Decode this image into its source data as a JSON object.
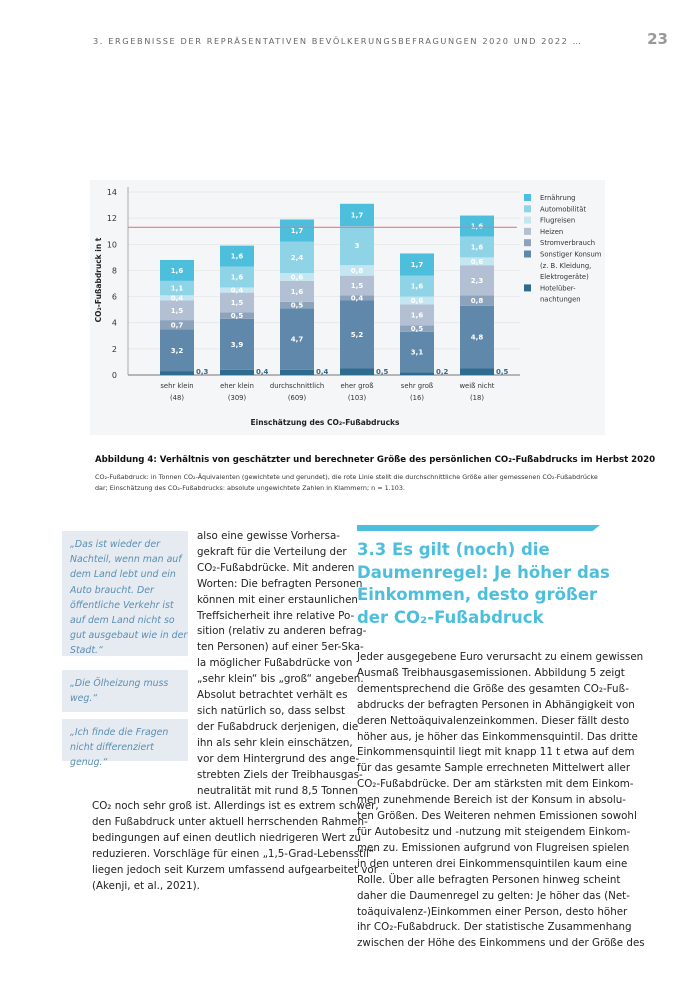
{
  "header": {
    "running_title": "3. ERGEBNISSE DER REPRÄSENTATIVEN BEVÖLKERUNGSBEFRAGUNGEN 2020 UND 2022 …",
    "page_number": "23"
  },
  "chart_data": {
    "type": "bar",
    "stacked": true,
    "ylabel": "CO₂-Fußabdruck in t",
    "xlabel": "Einschätzung des CO₂-Fußabdrucks",
    "ylim": [
      0,
      14
    ],
    "yticks": [
      "0",
      "2",
      "4",
      "6",
      "8",
      "10",
      "12",
      "14"
    ],
    "grid": true,
    "legend_position": "right",
    "categories": [
      [
        "sehr klein",
        "(48)"
      ],
      [
        "eher klein",
        "(309)"
      ],
      [
        "durchschnittlich",
        "(609)"
      ],
      [
        "eher groß",
        "(103)"
      ],
      [
        "sehr groß",
        "(16)"
      ],
      [
        "weiß nicht",
        "(18)"
      ]
    ],
    "reference_line": {
      "value": 11.3,
      "color": "#e07a8e"
    },
    "series": [
      {
        "name": "Hotelübernachtungen",
        "legend_lines": [
          "Hotelüber-",
          "nachtungen"
        ],
        "color": "#2d6b8f",
        "values": [
          0.3,
          0.4,
          0.4,
          0.5,
          0.2,
          0.5
        ]
      },
      {
        "name": "Sonstiger Konsum (z. B. Kleidung, Elektrogeräte)",
        "legend_lines": [
          "Sonstiger Konsum",
          "(z. B. Kleidung,",
          "Elektrogeräte)"
        ],
        "color": "#5f88aa",
        "values": [
          3.2,
          3.9,
          4.7,
          5.2,
          3.1,
          4.8
        ]
      },
      {
        "name": "Stromverbrauch",
        "legend_lines": [
          "Stromverbrauch"
        ],
        "color": "#8da3bc",
        "values": [
          0.7,
          0.5,
          0.5,
          0.4,
          0.5,
          0.8
        ]
      },
      {
        "name": "Heizen",
        "legend_lines": [
          "Heizen"
        ],
        "color": "#b3c0d3",
        "values": [
          1.5,
          1.5,
          1.6,
          1.5,
          1.6,
          2.3
        ]
      },
      {
        "name": "Flugreisen",
        "legend_lines": [
          "Flugreisen"
        ],
        "color": "#c3e6f1",
        "values": [
          0.4,
          0.4,
          0.6,
          0.8,
          0.6,
          0.6
        ]
      },
      {
        "name": "Automobilität",
        "legend_lines": [
          "Automobilität"
        ],
        "color": "#8fd3e6",
        "values": [
          1.1,
          1.6,
          2.4,
          3.0,
          1.6,
          1.6
        ]
      },
      {
        "name": "Ernährung",
        "legend_lines": [
          "Ernährung"
        ],
        "color": "#4dbfdc",
        "values": [
          1.6,
          1.6,
          1.7,
          1.7,
          1.7,
          1.6
        ]
      }
    ]
  },
  "caption": {
    "title": "Abbildung 4: Verhältnis von geschätzter und berechneter Größe des persönlichen CO₂-Fußabdrucks im Herbst 2020",
    "note": "CO₂-Fußabdruck: in Tonnen CO₂-Äquivalenten (gewichtete und gerundet), die rote Linie stellt die durchschnittliche Größe aller gemessenen CO₂-Fußabdrücke dar; Einschätzung des CO₂-Fußabdrucks: absolute ungewichtete Zahlen in Klammern; n = 1.103."
  },
  "quotes": [
    "„Das ist wieder der Nachteil, wenn man auf dem Land lebt und ein Auto braucht. Der öffentliche Verkehr ist auf dem Land nicht so gut ausgebaut wie in der Stadt.“",
    "„Die Ölheizung muss weg.“",
    "„Ich finde die Fragen nicht differenziert genug.“"
  ],
  "left_column": {
    "narrow_lines": [
      "also eine gewisse Vorhersa-",
      "gekraft für die Verteilung der",
      "CO₂-Fußabdrücke. Mit anderen",
      "Worten: Die befragten Personen",
      "können mit einer erstaunlichen",
      "Treffsicherheit ihre relative Po-",
      "sition (relativ zu anderen befrag-",
      "ten Personen) auf einer 5er-Ska-",
      "la möglicher Fußabdrücke von",
      "„sehr klein“ bis „groß“ angeben.",
      "Absolut betrachtet verhält es",
      "sich natürlich so, dass selbst",
      "der Fußabdruck derjenigen, die",
      "ihn als sehr klein einschätzen,",
      "vor dem Hintergrund des ange-",
      "strebten Ziels der Treibhausgas-",
      "neutralität mit rund 8,5 Tonnen"
    ],
    "wide_lines": [
      "CO₂ noch sehr groß ist. Allerdings ist es extrem schwer,",
      "den Fußabdruck unter aktuell herrschenden Rahmen-",
      "bedingungen auf einen deutlich niedrigeren Wert zu",
      "reduzieren. Vorschläge für einen „1,5-Grad-Lebensstil“",
      "liegen jedoch seit Kurzem umfassend aufgearbeitet vor",
      "(Akenji, et al., 2021)."
    ]
  },
  "section": {
    "heading_lines": [
      "3.3  Es gilt (noch) die",
      "Daumenregel: Je höher das",
      "Einkommen, desto größer",
      "der CO₂-Fußabdruck"
    ],
    "body_lines": [
      "Jeder ausgegebene Euro verursacht zu einem gewissen",
      "Ausmaß Treibhausgasemissionen. Abbildung 5 zeigt",
      "dementsprechend die Größe des gesamten CO₂-Fuß-",
      "abdrucks der befragten Personen in Abhängigkeit von",
      "deren Nettoäquivalenzeinkommen. Dieser fällt desto",
      "höher aus, je höher das Einkommensquintil. Das dritte",
      "Einkommensquintil liegt mit knapp 11 t etwa auf dem",
      "für das gesamte Sample errechneten Mittelwert aller",
      "CO₂-Fußabdrücke. Der am stärksten mit dem Einkom-",
      "men zunehmende Bereich ist der Konsum in absolu-",
      "ten Größen. Des Weiteren nehmen Emissionen sowohl",
      "für Autobesitz und -nutzung mit steigendem Einkom-",
      "men zu. Emissionen aufgrund von Flugreisen spielen",
      "in den unteren drei Einkommensquintilen kaum eine",
      "Rolle. Über alle befragten Personen hinweg scheint",
      "daher die Daumenregel zu gelten: Je höher das (Net-",
      "toäquivalenz-)Einkommen einer Person, desto höher",
      "ihr CO₂-Fußabdruck. Der statistische Zusammenhang",
      "zwischen der Höhe des Einkommens und der Größe des"
    ]
  }
}
